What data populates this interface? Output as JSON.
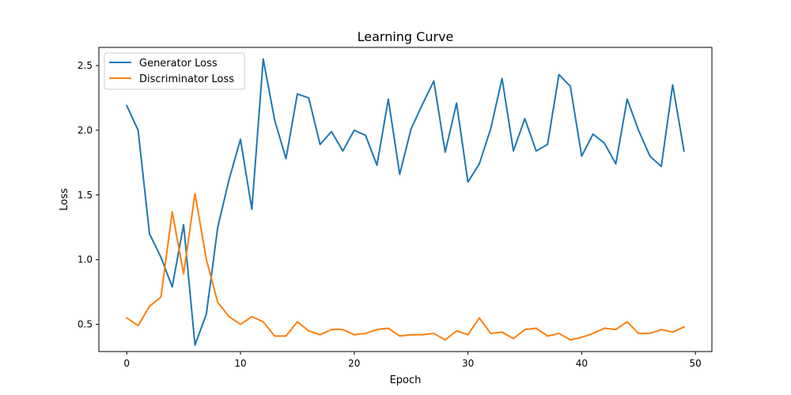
{
  "chart_data": {
    "type": "line",
    "title": "Learning Curve",
    "xlabel": "Epoch",
    "ylabel": "Loss",
    "xlim": [
      -2.45,
      51.45
    ],
    "ylim": [
      0.29,
      2.64
    ],
    "xticks": [
      0,
      10,
      20,
      30,
      40,
      50
    ],
    "yticks": [
      0.5,
      1.0,
      1.5,
      2.0,
      2.5
    ],
    "xtick_labels": [
      "0",
      "10",
      "20",
      "30",
      "40",
      "50"
    ],
    "ytick_labels": [
      "0.5",
      "1.0",
      "1.5",
      "2.0",
      "2.5"
    ],
    "grid": false,
    "legend_position": "upper-left",
    "x": [
      0,
      1,
      2,
      3,
      4,
      5,
      6,
      7,
      8,
      9,
      10,
      11,
      12,
      13,
      14,
      15,
      16,
      17,
      18,
      19,
      20,
      21,
      22,
      23,
      24,
      25,
      26,
      27,
      28,
      29,
      30,
      31,
      32,
      33,
      34,
      35,
      36,
      37,
      38,
      39,
      40,
      41,
      42,
      43,
      44,
      45,
      46,
      47,
      48,
      49
    ],
    "series": [
      {
        "name": "Generator Loss",
        "color": "#1f77b4",
        "values": [
          2.19,
          2.0,
          1.2,
          1.02,
          0.79,
          1.27,
          0.34,
          0.58,
          1.25,
          1.62,
          1.93,
          1.39,
          2.55,
          2.08,
          1.78,
          2.28,
          2.25,
          1.89,
          1.99,
          1.84,
          2.0,
          1.96,
          1.73,
          2.24,
          1.66,
          2.01,
          2.2,
          2.38,
          1.83,
          2.21,
          1.6,
          1.74,
          2.01,
          2.4,
          1.84,
          2.09,
          1.84,
          1.89,
          2.43,
          2.34,
          1.8,
          1.97,
          1.9,
          1.74,
          2.24,
          2.0,
          1.8,
          1.72,
          2.35,
          1.84
        ]
      },
      {
        "name": "Discriminator Loss",
        "color": "#ff7f0e",
        "values": [
          0.55,
          0.49,
          0.64,
          0.71,
          1.37,
          0.89,
          1.51,
          1.0,
          0.67,
          0.56,
          0.5,
          0.56,
          0.52,
          0.41,
          0.41,
          0.52,
          0.45,
          0.42,
          0.46,
          0.46,
          0.42,
          0.43,
          0.46,
          0.47,
          0.41,
          0.42,
          0.42,
          0.43,
          0.38,
          0.45,
          0.42,
          0.55,
          0.43,
          0.44,
          0.39,
          0.46,
          0.47,
          0.41,
          0.43,
          0.38,
          0.4,
          0.43,
          0.47,
          0.46,
          0.52,
          0.43,
          0.43,
          0.46,
          0.44,
          0.48
        ]
      }
    ]
  }
}
